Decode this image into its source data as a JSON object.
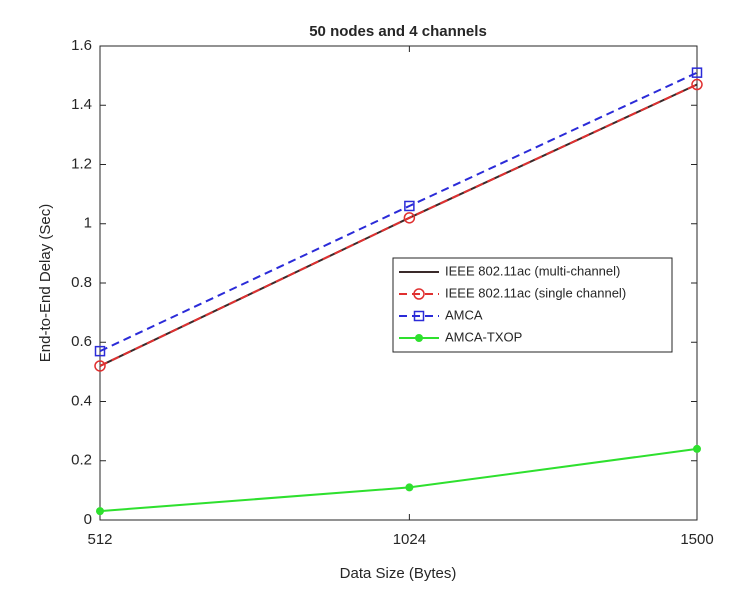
{
  "chart_data": {
    "type": "line",
    "title": "50 nodes and 4 channels",
    "x_label": "Data Size (Bytes)",
    "y_label": "End-to-End Delay (Sec)",
    "x": [
      512,
      1024,
      1500
    ],
    "xlim": [
      512,
      1500
    ],
    "xticks": [
      512,
      1024,
      1500
    ],
    "ylim": [
      0,
      1.6
    ],
    "yticks": [
      0,
      0.2,
      0.4,
      0.6,
      0.8,
      1,
      1.2,
      1.4,
      1.6
    ],
    "legend": "right",
    "series": [
      {
        "name": "IEEE 802.11ac (multi-channel)",
        "color": "#3a2a2a",
        "dashed": false,
        "marker": "none",
        "values": [
          0.52,
          1.02,
          1.47
        ]
      },
      {
        "name": "IEEE 802.11ac (single channel)",
        "color": "#e03030",
        "dashed": true,
        "marker": "circle",
        "values": [
          0.52,
          1.02,
          1.47
        ]
      },
      {
        "name": "AMCA",
        "color": "#2b2bd8",
        "dashed": true,
        "marker": "square",
        "values": [
          0.57,
          1.06,
          1.51
        ]
      },
      {
        "name": "AMCA-TXOP",
        "color": "#2ee02e",
        "dashed": false,
        "marker": "dot",
        "values": [
          0.03,
          0.11,
          0.24
        ]
      }
    ]
  }
}
